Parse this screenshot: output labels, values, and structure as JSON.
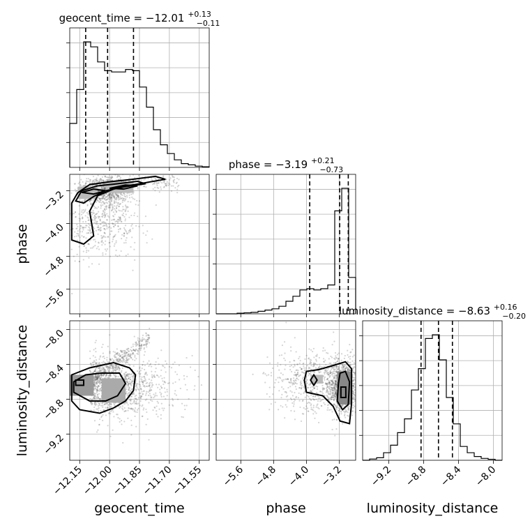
{
  "chart_data": {
    "type": "corner",
    "parameters": [
      "geocent_time",
      "phase",
      "luminosity_distance"
    ],
    "titles": [
      {
        "label": "geocent_time",
        "median": "−12.01",
        "plus": "+0.13",
        "minus": "−0.11"
      },
      {
        "label": "phase",
        "median": "−3.19",
        "plus": "+0.21",
        "minus": "−0.73"
      },
      {
        "label": "luminosity_distance",
        "median": "−8.63",
        "plus": "+0.16",
        "minus": "−0.20"
      }
    ],
    "ranges": {
      "geocent_time": [
        -12.2,
        -11.5
      ],
      "phase": [
        -6.2,
        -2.8
      ],
      "luminosity_distance": [
        -9.5,
        -7.9
      ]
    },
    "ticks": {
      "geocent_time": [
        {
          "v": -12.15,
          "label": "−12.15"
        },
        {
          "v": -12.0,
          "label": "−12.00"
        },
        {
          "v": -11.85,
          "label": "−11.85"
        },
        {
          "v": -11.7,
          "label": "−11.70"
        },
        {
          "v": -11.55,
          "label": "−11.55"
        }
      ],
      "phase": [
        {
          "v": -5.6,
          "label": "−5.6"
        },
        {
          "v": -4.8,
          "label": "−4.8"
        },
        {
          "v": -4.0,
          "label": "−4.0"
        },
        {
          "v": -3.2,
          "label": "−3.2"
        }
      ],
      "luminosity_distance": [
        {
          "v": -9.2,
          "label": "−9.2"
        },
        {
          "v": -8.8,
          "label": "−8.8"
        },
        {
          "v": -8.4,
          "label": "−8.4"
        },
        {
          "v": -8.0,
          "label": "−8.0"
        }
      ]
    },
    "quantiles": {
      "geocent_time": [
        -12.12,
        -12.01,
        -11.88
      ],
      "phase": [
        -3.92,
        -3.19,
        -2.98
      ],
      "luminosity_distance": [
        -8.83,
        -8.63,
        -8.47
      ]
    },
    "histograms": {
      "geocent_time": {
        "edges_range": [
          -12.2,
          -11.5
        ],
        "counts": [
          0.35,
          0.62,
          1.0,
          0.96,
          0.84,
          0.77,
          0.76,
          0.76,
          0.78,
          0.77,
          0.64,
          0.48,
          0.3,
          0.18,
          0.11,
          0.06,
          0.03,
          0.02,
          0.01,
          0.005
        ]
      },
      "phase": {
        "edges_range": [
          -6.2,
          -2.8
        ],
        "counts": [
          0,
          0,
          0,
          0.005,
          0.008,
          0.012,
          0.02,
          0.03,
          0.04,
          0.06,
          0.1,
          0.14,
          0.19,
          0.2,
          0.19,
          0.2,
          0.23,
          0.82,
          1.0,
          0.29
        ]
      },
      "luminosity_distance": {
        "edges_range": [
          -9.5,
          -7.9
        ],
        "counts": [
          0,
          0.01,
          0.02,
          0.06,
          0.12,
          0.22,
          0.33,
          0.56,
          0.73,
          0.97,
          1.0,
          0.8,
          0.5,
          0.29,
          0.11,
          0.06,
          0.03,
          0.015,
          0.008,
          0
        ]
      }
    },
    "grid": true,
    "legend": "none"
  }
}
